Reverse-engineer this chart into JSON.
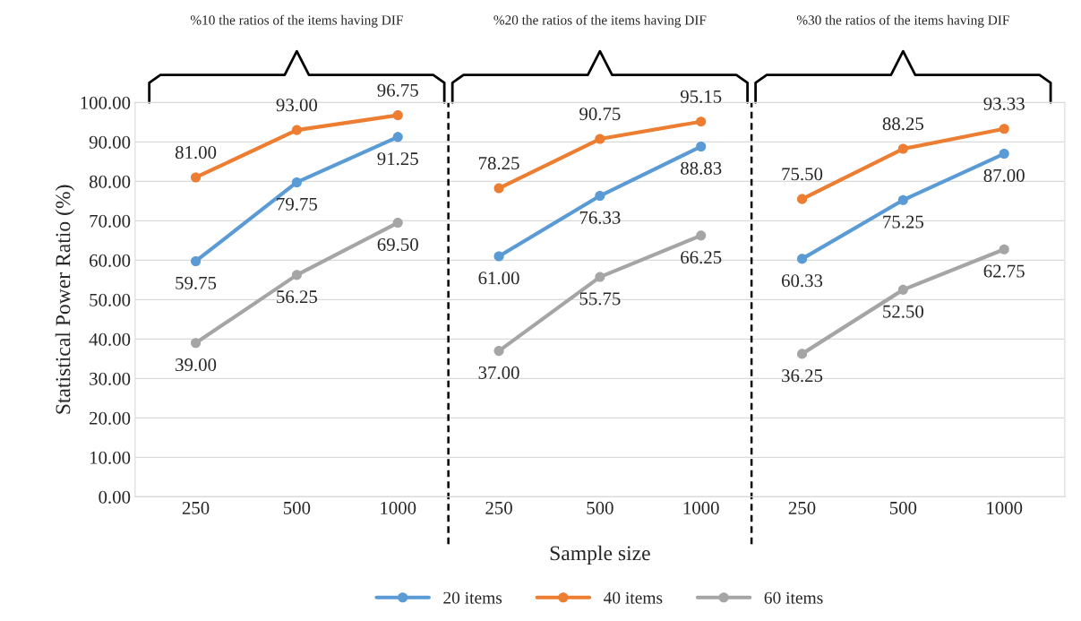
{
  "chart_data": {
    "type": "line",
    "xlabel": "Sample size",
    "ylabel": "Statistical Power Ratio (%)",
    "annotations": [
      "%10 the ratios of the items having DIF",
      "%20 the ratios of the items having DIF",
      "%30 the ratios of the items having DIF"
    ],
    "categories": [
      "250",
      "500",
      "1000",
      "250",
      "500",
      "1000",
      "250",
      "500",
      "1000"
    ],
    "ylim": [
      0,
      100
    ],
    "yticks": [
      {
        "value": 0,
        "label": "0.00"
      },
      {
        "value": 10,
        "label": "10.00"
      },
      {
        "value": 20,
        "label": "20.00"
      },
      {
        "value": 30,
        "label": "30.00"
      },
      {
        "value": 40,
        "label": "40.00"
      },
      {
        "value": 50,
        "label": "50.00"
      },
      {
        "value": 60,
        "label": "60.00"
      },
      {
        "value": 70,
        "label": "70.00"
      },
      {
        "value": 80,
        "label": "80.00"
      },
      {
        "value": 90,
        "label": "90.00"
      },
      {
        "value": 100,
        "label": "100.00"
      }
    ],
    "grid": "y",
    "marker": "circle",
    "legend": "bottom",
    "series": [
      {
        "name": "20 items",
        "color": "#5b9bd5",
        "values": [
          59.75,
          79.75,
          91.25,
          null,
          null,
          null,
          null,
          null,
          null
        ],
        "value_labels": [
          "59.75",
          "79.75",
          "91.25",
          null,
          null,
          null,
          null,
          null,
          null
        ]
      },
      {
        "name": "40 items",
        "color": "#ed7d31",
        "values": [
          81.0,
          93.0,
          96.75,
          null,
          null,
          null,
          null,
          null,
          null
        ],
        "value_labels": [
          "81.00",
          "93.00",
          "96.75",
          null,
          null,
          null,
          null,
          null,
          null
        ]
      },
      {
        "name": "60 items",
        "color": "#a5a5a5",
        "values": [
          39.0,
          56.25,
          69.5,
          null,
          null,
          null,
          null,
          null,
          null
        ],
        "value_labels": [
          "39.00",
          "56.25",
          "69.50",
          null,
          null,
          null,
          null,
          null,
          null
        ]
      },
      {
        "color": "#5b9bd5",
        "values": [
          null,
          null,
          null,
          61.0,
          76.33,
          88.83,
          null,
          null,
          null
        ],
        "value_labels": [
          null,
          null,
          null,
          "61.00",
          "76.33",
          "88.83",
          null,
          null,
          null
        ]
      },
      {
        "color": "#ed7d31",
        "values": [
          null,
          null,
          null,
          78.25,
          90.75,
          95.15,
          null,
          null,
          null
        ],
        "value_labels": [
          null,
          null,
          null,
          "78.25",
          "90.75",
          "95.15",
          null,
          null,
          null
        ]
      },
      {
        "color": "#a5a5a5",
        "values": [
          null,
          null,
          null,
          37.0,
          55.75,
          66.25,
          null,
          null,
          null
        ],
        "value_labels": [
          null,
          null,
          null,
          "37.00",
          "55.75",
          "66.25",
          null,
          null,
          null
        ]
      },
      {
        "color": "#5b9bd5",
        "values": [
          null,
          null,
          null,
          null,
          null,
          null,
          60.33,
          75.25,
          87.0
        ],
        "value_labels": [
          null,
          null,
          null,
          null,
          null,
          null,
          "60.33",
          "75.25",
          "87.00"
        ]
      },
      {
        "color": "#ed7d31",
        "values": [
          null,
          null,
          null,
          null,
          null,
          null,
          75.5,
          88.25,
          93.33
        ],
        "value_labels": [
          null,
          null,
          null,
          null,
          null,
          null,
          "75.50",
          "88.25",
          "93.33"
        ]
      },
      {
        "color": "#a5a5a5",
        "values": [
          null,
          null,
          null,
          null,
          null,
          null,
          36.25,
          52.5,
          62.75
        ],
        "value_labels": [
          null,
          null,
          null,
          null,
          null,
          null,
          "36.25",
          "52.50",
          "62.75"
        ]
      }
    ]
  }
}
